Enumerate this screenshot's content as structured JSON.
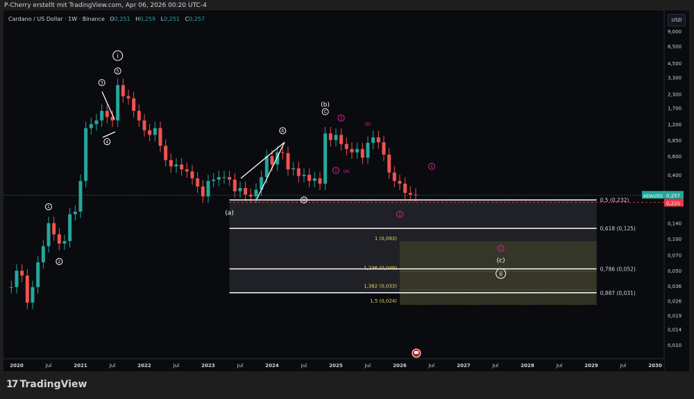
{
  "caption": "P-Cherry erstellt mit TradingView.com, Apr 06, 2026 00:20 UTC-4",
  "legend": {
    "symbol": "Cardano / US Dollar · 1W · Binance",
    "o_label": "O",
    "o": "0,251",
    "h_label": "H",
    "h": "0,259",
    "l_label": "L",
    "l": "0,251",
    "c_label": "C",
    "c": "0,257"
  },
  "currency": "USD",
  "footer": {
    "brand": "TradingView",
    "logo": "TV-logo"
  },
  "colors": {
    "up": "#26a69a",
    "down": "#ef5350",
    "background": "#0a0b0f",
    "fib_zone": "#2a2b30",
    "ext_zone": "#3a3a28",
    "magenta": "#e91e9c",
    "ext_text": "#e6d85c"
  },
  "chart_data": {
    "type": "candlestick",
    "title": "Cardano / US Dollar · 1W · Binance",
    "y_scale": "log",
    "ylim": [
      0.008,
      12
    ],
    "xlim": [
      "2019-11",
      "2030-04"
    ],
    "grid": false,
    "y_ticks": [
      "9,000",
      "6,500",
      "4,500",
      "3,300",
      "2,300",
      "1,700",
      "1,200",
      "0,850",
      "0,600",
      "0,400",
      "0,280",
      "0,140",
      "0,100",
      "0,070",
      "0,050",
      "0,036",
      "0,026",
      "0,019",
      "0,014",
      "0,010"
    ],
    "y_tick_values": [
      9,
      6.5,
      4.5,
      3.3,
      2.3,
      1.7,
      1.2,
      0.85,
      0.6,
      0.4,
      0.28,
      0.14,
      0.1,
      0.07,
      0.05,
      0.036,
      0.026,
      0.019,
      0.014,
      0.01
    ],
    "x_ticks": [
      "2020",
      "Jul",
      "2021",
      "Jul",
      "2022",
      "Jul",
      "2023",
      "Jul",
      "2024",
      "Jul",
      "2025",
      "Jul",
      "2026",
      "Jul",
      "2027",
      "Jul",
      "2028",
      "Jul",
      "2029",
      "Jul",
      "2030"
    ],
    "series_start": "2019-12",
    "monthly_close": [
      0.035,
      0.05,
      0.045,
      0.025,
      0.035,
      0.06,
      0.085,
      0.14,
      0.11,
      0.09,
      0.095,
      0.17,
      0.18,
      0.35,
      1.1,
      1.2,
      1.3,
      1.6,
      1.4,
      1.3,
      2.8,
      2.2,
      2.1,
      1.6,
      1.3,
      1.05,
      0.95,
      1.1,
      0.75,
      0.55,
      0.48,
      0.5,
      0.45,
      0.43,
      0.37,
      0.31,
      0.25,
      0.35,
      0.36,
      0.38,
      0.38,
      0.36,
      0.28,
      0.3,
      0.26,
      0.25,
      0.29,
      0.38,
      0.6,
      0.5,
      0.65,
      0.64,
      0.45,
      0.46,
      0.39,
      0.4,
      0.35,
      0.37,
      0.33,
      0.98,
      0.85,
      0.95,
      0.78,
      0.7,
      0.65,
      0.7,
      0.58,
      0.8,
      0.9,
      0.81,
      0.62,
      0.42,
      0.35,
      0.33,
      0.27,
      0.26,
      0.257
    ],
    "last_price": {
      "symbol": "ADAUSD",
      "value": "0,257",
      "price": 0.257
    },
    "marker_price": {
      "value": "0,220",
      "price": 0.22
    },
    "fib_retracement": [
      {
        "label": "0,5 (0,232)",
        "price": 0.232
      },
      {
        "label": "0,618 (0,125)",
        "price": 0.125
      },
      {
        "label": "0,786 (0,052)",
        "price": 0.052
      },
      {
        "label": "0,887 (0,031)",
        "price": 0.031
      }
    ],
    "fib_extension": [
      {
        "label": "1 (0,093)",
        "price": 0.093
      },
      {
        "label": "1,236 (0,049)",
        "price": 0.049
      },
      {
        "label": "1,382 (0,033)",
        "price": 0.033
      },
      {
        "label": "1,5 (0,024)",
        "price": 0.024
      }
    ],
    "fib_retracement_start": "2023-05",
    "fib_extension_start": "2026-01",
    "fib_end": "2029-02",
    "wave_labels": [
      {
        "text": "1",
        "date": "2020-07",
        "price": 0.2,
        "style": "circle",
        "color": "white"
      },
      {
        "text": "2",
        "date": "2020-09",
        "price": 0.061,
        "style": "circle",
        "color": "white"
      },
      {
        "text": "3",
        "date": "2021-05",
        "price": 2.95,
        "style": "circle",
        "color": "white"
      },
      {
        "text": "4",
        "date": "2021-06",
        "price": 0.82,
        "style": "circle",
        "color": "white"
      },
      {
        "text": "5",
        "date": "2021-08",
        "price": 3.8,
        "style": "circle",
        "color": "white"
      },
      {
        "text": "i",
        "date": "2021-08",
        "price": 5.3,
        "style": "circle-big",
        "color": "white"
      },
      {
        "text": "(a)",
        "date": "2023-05",
        "price": 0.177,
        "style": "plain",
        "color": "white"
      },
      {
        "text": "A",
        "date": "2024-03",
        "price": 1.04,
        "style": "circle",
        "color": "white"
      },
      {
        "text": "B",
        "date": "2024-07",
        "price": 0.232,
        "style": "circle",
        "color": "white"
      },
      {
        "text": "(b)",
        "date": "2024-11",
        "price": 1.85,
        "style": "plain",
        "color": "white"
      },
      {
        "text": "C",
        "date": "2024-11",
        "price": 1.57,
        "style": "circle",
        "color": "white"
      },
      {
        "text": "2",
        "date": "2025-02",
        "price": 1.37,
        "style": "circle",
        "color": "magenta"
      },
      {
        "text": "1",
        "date": "2025-01",
        "price": 0.44,
        "style": "circle",
        "color": "magenta"
      },
      {
        "text": "(A)",
        "date": "2025-03",
        "price": 0.44,
        "style": "plain",
        "color": "magenta"
      },
      {
        "text": "(B)",
        "date": "2025-07",
        "price": 1.22,
        "style": "plain",
        "color": "magenta"
      },
      {
        "text": "4",
        "date": "2026-07",
        "price": 0.48,
        "style": "circle",
        "color": "magenta"
      },
      {
        "text": "1",
        "date": "2026-01",
        "price": 0.17,
        "style": "circle",
        "color": "magenta"
      },
      {
        "text": "3",
        "date": "2027-08",
        "price": 0.081,
        "style": "circle",
        "color": "magenta"
      },
      {
        "text": "(c)",
        "date": "2027-08",
        "price": 0.063,
        "style": "plain",
        "color": "white"
      },
      {
        "text": "ii",
        "date": "2027-08",
        "price": 0.047,
        "style": "circle-big",
        "color": "white"
      }
    ]
  }
}
